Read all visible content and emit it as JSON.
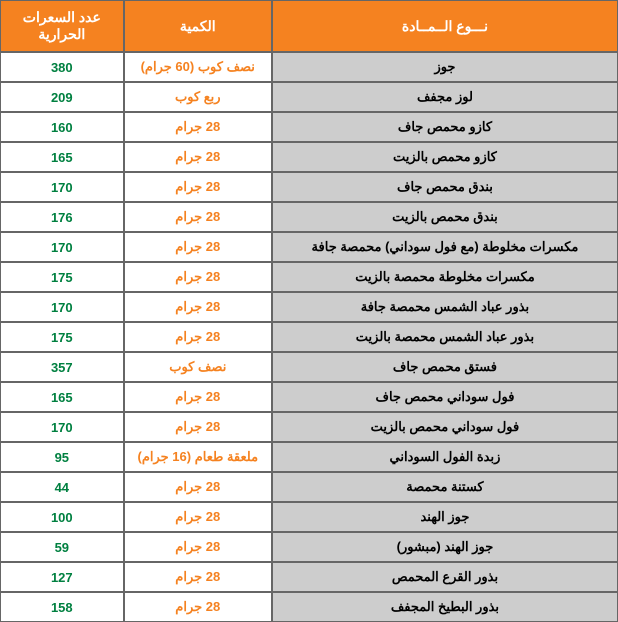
{
  "headers": {
    "material": "نـــوع الــمــادة",
    "quantity": "الكمية",
    "calories": "عدد السعرات الحرارية"
  },
  "rows": [
    {
      "material": "جوز",
      "quantity": "نصف كوب (60 جرام)",
      "calories": "380"
    },
    {
      "material": "لوز مجفف",
      "quantity": "ربع كوب",
      "calories": "209"
    },
    {
      "material": "كازو محمص جاف",
      "quantity": "28 جرام",
      "calories": "160"
    },
    {
      "material": "كازو محمص بالزيت",
      "quantity": "28 جرام",
      "calories": "165"
    },
    {
      "material": "بندق محمص جاف",
      "quantity": "28 جرام",
      "calories": "170"
    },
    {
      "material": "بندق محمص بالزيت",
      "quantity": "28 جرام",
      "calories": "176"
    },
    {
      "material": "مكسرات مخلوطة (مع فول سوداني) محمصة جافة",
      "quantity": "28 جرام",
      "calories": "170"
    },
    {
      "material": "مكسرات مخلوطة محمصة بالزيت",
      "quantity": "28 جرام",
      "calories": "175"
    },
    {
      "material": "بذور عباد الشمس محمصة جافة",
      "quantity": "28 جرام",
      "calories": "170"
    },
    {
      "material": "بذور عباد الشمس محمصة بالزيت",
      "quantity": "28 جرام",
      "calories": "175"
    },
    {
      "material": "فستق محمص جاف",
      "quantity": "نصف كوب",
      "calories": "357"
    },
    {
      "material": "فول سوداني محمص جاف",
      "quantity": "28 جرام",
      "calories": "165"
    },
    {
      "material": "فول سوداني محمص بالزيت",
      "quantity": "28 جرام",
      "calories": "170"
    },
    {
      "material": "زبدة الفول السوداني",
      "quantity": "ملعقة طعام (16 جرام)",
      "calories": "95"
    },
    {
      "material": "كستنة محمصة",
      "quantity": "28 جرام",
      "calories": "44"
    },
    {
      "material": "جوز الهند",
      "quantity": "28 جرام",
      "calories": "100"
    },
    {
      "material": "جوز الهند (مبشور)",
      "quantity": "28 جرام",
      "calories": "59"
    },
    {
      "material": "بذور القرع المحمص",
      "quantity": "28 جرام",
      "calories": "127"
    },
    {
      "material": "بذور البطيخ المجفف",
      "quantity": "28 جرام",
      "calories": "158"
    }
  ],
  "styling": {
    "header_bg": "#f58220",
    "header_text": "#ffffff",
    "material_bg": "#cdcdcd",
    "material_text": "#000000",
    "quantity_text": "#f58220",
    "calories_text": "#008040",
    "border_color": "#666666",
    "font_size_header": 14,
    "font_size_body": 13,
    "col_widths": [
      "56%",
      "24%",
      "20%"
    ]
  }
}
